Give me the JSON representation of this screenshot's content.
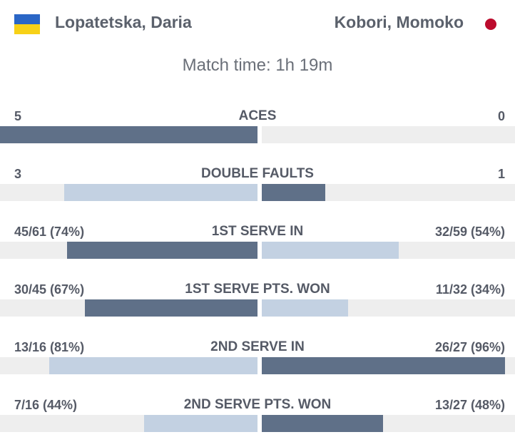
{
  "players": {
    "left": {
      "name": "Lopatetska, Daria",
      "flag": "ukraine-flag-icon"
    },
    "right": {
      "name": "Kobori, Momoko",
      "flag": "japan-flag-icon"
    }
  },
  "match_time": "Match time: 1h 19m",
  "colors": {
    "leader": "#5f7088",
    "trailer": "#c3d1e2",
    "track": "#eeeeee"
  },
  "stats": [
    {
      "title": "ACES",
      "left": "5",
      "right": "0",
      "left_fill": 1.0,
      "right_fill": 0.0,
      "leader": "left"
    },
    {
      "title": "DOUBLE FAULTS",
      "left": "3",
      "right": "1",
      "left_fill": 0.75,
      "right_fill": 0.25,
      "leader": "right"
    },
    {
      "title": "1ST SERVE IN",
      "left": "45/61 (74%)",
      "right": "32/59 (54%)",
      "left_fill": 0.74,
      "right_fill": 0.54,
      "leader": "left"
    },
    {
      "title": "1ST SERVE PTS. WON",
      "left": "30/45 (67%)",
      "right": "11/32 (34%)",
      "left_fill": 0.67,
      "right_fill": 0.34,
      "leader": "left"
    },
    {
      "title": "2ND SERVE IN",
      "left": "13/16 (81%)",
      "right": "26/27 (96%)",
      "left_fill": 0.81,
      "right_fill": 0.96,
      "leader": "right"
    },
    {
      "title": "2ND SERVE PTS. WON",
      "left": "7/16 (44%)",
      "right": "13/27 (48%)",
      "left_fill": 0.44,
      "right_fill": 0.48,
      "leader": "right"
    }
  ]
}
